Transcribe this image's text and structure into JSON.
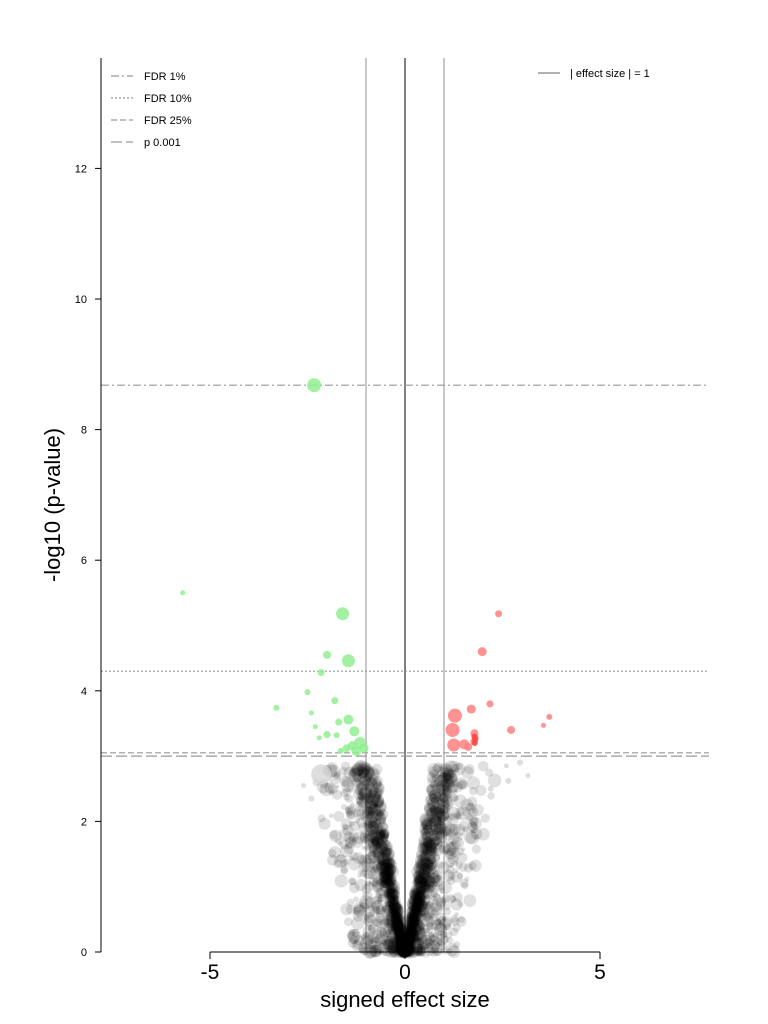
{
  "chart_data": {
    "type": "scatter",
    "title": "",
    "xlabel": "signed effect size",
    "ylabel": "-log10 (p-value)",
    "xlim": [
      -7.8,
      7.8
    ],
    "ylim": [
      0,
      13.7
    ],
    "x_ticks": [
      {
        "value": -5,
        "label": "-5"
      },
      {
        "value": 0,
        "label": "0"
      },
      {
        "value": 5,
        "label": "5"
      }
    ],
    "y_ticks": [
      {
        "value": 0,
        "label": "0"
      },
      {
        "value": 2,
        "label": "2"
      },
      {
        "value": 4,
        "label": "4"
      },
      {
        "value": 6,
        "label": "6"
      },
      {
        "value": 8,
        "label": "8"
      },
      {
        "value": 10,
        "label": "10"
      },
      {
        "value": 12,
        "label": "12"
      }
    ],
    "grid": false,
    "threshold_lines": [
      {
        "label": "FDR 1%",
        "y": 8.68,
        "style": "dash-dot"
      },
      {
        "label": "FDR 10%",
        "y": 4.3,
        "style": "dotted"
      },
      {
        "label": "FDR 25%",
        "y": 3.05,
        "style": "dashed"
      },
      {
        "label": "p 0.001",
        "y": 3.0,
        "style": "long-dash"
      }
    ],
    "vertical_lines": [
      {
        "label": "| effect size | = 1",
        "x": [
          -1,
          1
        ],
        "style": "solid-gray"
      },
      {
        "x": 0,
        "style": "solid-black"
      }
    ],
    "legends": {
      "left": "top-left",
      "right": "top-right"
    },
    "colors": {
      "down": "#90ee90",
      "up": "#ff8080",
      "up_strong": "#ff4040",
      "nonsig_light": "#d3d3d3",
      "nonsig": "#000000",
      "threshold": "#999999",
      "effect_line": "#c8c8c8",
      "axis": "#000000"
    },
    "series": [
      {
        "group": "down",
        "points": [
          {
            "x": -2.33,
            "y": 8.68,
            "size": 14
          },
          {
            "x": -5.7,
            "y": 5.5,
            "size": 5
          },
          {
            "x": -1.6,
            "y": 5.18,
            "size": 13
          },
          {
            "x": -1.45,
            "y": 4.46,
            "size": 13
          },
          {
            "x": -2.0,
            "y": 4.55,
            "size": 8
          },
          {
            "x": -2.15,
            "y": 4.28,
            "size": 7
          },
          {
            "x": -2.5,
            "y": 3.98,
            "size": 6
          },
          {
            "x": -1.8,
            "y": 3.85,
            "size": 7
          },
          {
            "x": -3.3,
            "y": 3.74,
            "size": 6
          },
          {
            "x": -2.4,
            "y": 3.66,
            "size": 5
          },
          {
            "x": -1.45,
            "y": 3.56,
            "size": 10
          },
          {
            "x": -1.7,
            "y": 3.52,
            "size": 7
          },
          {
            "x": -2.3,
            "y": 3.45,
            "size": 5
          },
          {
            "x": -1.3,
            "y": 3.38,
            "size": 10
          },
          {
            "x": -2.0,
            "y": 3.33,
            "size": 7
          },
          {
            "x": -1.75,
            "y": 3.32,
            "size": 6
          },
          {
            "x": -2.2,
            "y": 3.28,
            "size": 5
          },
          {
            "x": -1.15,
            "y": 3.2,
            "size": 12
          },
          {
            "x": -1.35,
            "y": 3.16,
            "size": 9
          },
          {
            "x": -1.5,
            "y": 3.12,
            "size": 8
          },
          {
            "x": -1.05,
            "y": 3.12,
            "size": 9
          },
          {
            "x": -1.25,
            "y": 3.08,
            "size": 10
          },
          {
            "x": -1.65,
            "y": 3.08,
            "size": 6
          }
        ]
      },
      {
        "group": "up",
        "points": [
          {
            "x": 2.4,
            "y": 5.18,
            "size": 7
          },
          {
            "x": 1.98,
            "y": 4.6,
            "size": 9
          },
          {
            "x": 2.18,
            "y": 3.8,
            "size": 7
          },
          {
            "x": 1.7,
            "y": 3.72,
            "size": 9
          },
          {
            "x": 1.28,
            "y": 3.62,
            "size": 14
          },
          {
            "x": 3.7,
            "y": 3.6,
            "size": 6
          },
          {
            "x": 3.55,
            "y": 3.47,
            "size": 5
          },
          {
            "x": 1.22,
            "y": 3.4,
            "size": 14
          },
          {
            "x": 2.72,
            "y": 3.4,
            "size": 8
          },
          {
            "x": 1.78,
            "y": 3.35,
            "size": 8
          },
          {
            "x": 1.25,
            "y": 3.17,
            "size": 13
          },
          {
            "x": 1.52,
            "y": 3.18,
            "size": 10
          },
          {
            "x": 1.62,
            "y": 3.14,
            "size": 8
          },
          {
            "x": 1.8,
            "y": 3.28,
            "size": 7
          },
          {
            "x": 1.76,
            "y": 3.22,
            "size": 7
          }
        ]
      },
      {
        "group": "nonsig_light",
        "points": [
          {
            "x": -2.15,
            "y": 2.72,
            "size": 20
          },
          {
            "x": -2.4,
            "y": 2.35,
            "size": 6
          },
          {
            "x": 2.65,
            "y": 2.62,
            "size": 6
          },
          {
            "x": 2.95,
            "y": 2.9,
            "size": 6
          },
          {
            "x": 2.6,
            "y": 2.85,
            "size": 5
          },
          {
            "x": 3.15,
            "y": 2.7,
            "size": 5
          },
          {
            "x": 2.2,
            "y": 2.5,
            "size": 6
          },
          {
            "x": -2.6,
            "y": 2.55,
            "size": 5
          }
        ]
      }
    ]
  }
}
